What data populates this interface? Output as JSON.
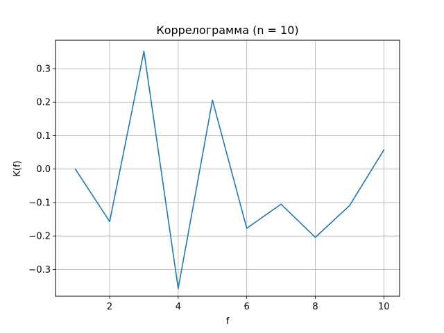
{
  "chart_data": {
    "type": "line",
    "title": "Коррелограмма (n = 10)",
    "xlabel": "f",
    "ylabel": "K(f)",
    "xlim": [
      0.42,
      10.46
    ],
    "ylim": [
      -0.38,
      0.385
    ],
    "xticks": [
      2,
      4,
      6,
      8,
      10
    ],
    "yticks": [
      -0.3,
      -0.2,
      -0.1,
      0.0,
      0.1,
      0.2,
      0.3
    ],
    "grid": true,
    "line_color": "#1f77b4",
    "series": [
      {
        "x": [
          1,
          2,
          3,
          4,
          5,
          6,
          7,
          8,
          9,
          10
        ],
        "values": [
          0.0,
          -0.157,
          0.352,
          -0.357,
          0.206,
          -0.177,
          -0.105,
          -0.204,
          -0.109,
          0.057
        ]
      }
    ]
  }
}
